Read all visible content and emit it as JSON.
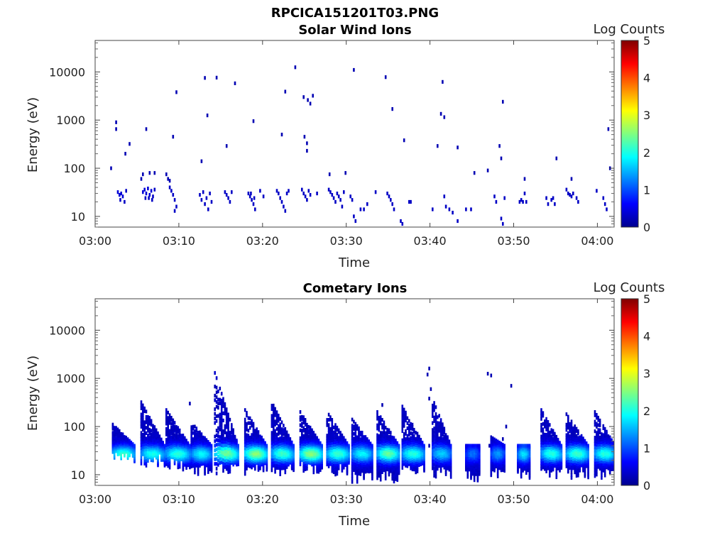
{
  "figure_title": "RPCICA151201T03.PNG",
  "chart_data": [
    {
      "type": "heatmap",
      "title": "Solar Wind Ions",
      "xlabel": "Time",
      "ylabel": "Energy (eV)",
      "yscale": "log",
      "ylim": [
        6,
        45000
      ],
      "xlim": [
        "03:00",
        "04:02"
      ],
      "x_ticks": [
        "03:00",
        "03:10",
        "03:20",
        "03:30",
        "03:40",
        "03:50",
        "04:00"
      ],
      "y_ticks": [
        "10",
        "100",
        "1000",
        "10000"
      ],
      "colorbar": {
        "label": "Log Counts",
        "min": 0,
        "max": 5,
        "ticks": [
          "0",
          "1",
          "2",
          "3",
          "4",
          "5"
        ],
        "colormap": "jet"
      },
      "cells": [
        [
          1.8,
          100,
          0.2
        ],
        [
          2.4,
          900,
          0.2
        ],
        [
          2.4,
          650,
          0.2
        ],
        [
          3.5,
          200,
          0.2
        ],
        [
          4.0,
          320,
          0.2
        ],
        [
          6.0,
          650,
          0.2
        ],
        [
          9.2,
          450,
          0.2
        ],
        [
          9.6,
          3800,
          0.2
        ],
        [
          12.6,
          140,
          0.2
        ],
        [
          13.0,
          7500,
          0.2
        ],
        [
          13.3,
          1250,
          0.2
        ],
        [
          14.4,
          7600,
          0.2
        ],
        [
          15.6,
          290,
          0.2
        ],
        [
          16.6,
          5800,
          0.2
        ],
        [
          18.8,
          950,
          0.2
        ],
        [
          22.2,
          500,
          0.2
        ],
        [
          22.6,
          3900,
          0.2
        ],
        [
          23.8,
          12500,
          0.2
        ],
        [
          24.8,
          3000,
          0.2
        ],
        [
          25.3,
          2600,
          0.2
        ],
        [
          25.6,
          2200,
          0.2
        ],
        [
          25.9,
          3200,
          0.2
        ],
        [
          24.9,
          450,
          0.2
        ],
        [
          25.2,
          330,
          0.2
        ],
        [
          25.2,
          230,
          0.2
        ],
        [
          27.9,
          75,
          0.2
        ],
        [
          29.8,
          80,
          0.2
        ],
        [
          30.8,
          11000,
          0.2
        ],
        [
          34.6,
          7800,
          0.2
        ],
        [
          35.4,
          1700,
          0.2
        ],
        [
          36.8,
          380,
          0.2
        ],
        [
          40.8,
          290,
          0.2
        ],
        [
          41.2,
          1350,
          0.2
        ],
        [
          41.4,
          6200,
          0.2
        ],
        [
          41.6,
          1150,
          0.2
        ],
        [
          43.2,
          270,
          0.2
        ],
        [
          45.2,
          80,
          0.2
        ],
        [
          46.8,
          90,
          0.2
        ],
        [
          48.2,
          290,
          0.2
        ],
        [
          48.4,
          160,
          0.2
        ],
        [
          48.6,
          2400,
          0.2
        ],
        [
          51.2,
          60,
          0.2
        ],
        [
          55.0,
          160,
          0.2
        ],
        [
          56.8,
          60,
          0.2
        ],
        [
          61.2,
          650,
          0.2
        ],
        [
          61.4,
          100,
          0.2
        ],
        [
          3.5,
          6,
          0.2
        ],
        [
          53.2,
          6,
          0.2
        ],
        [
          58.8,
          6,
          0.2
        ],
        [
          5.4,
          60,
          0.2
        ],
        [
          5.6,
          75,
          0.2
        ],
        [
          6.4,
          80,
          0.2
        ],
        [
          7.0,
          80,
          0.2
        ],
        [
          8.4,
          75,
          0.2
        ],
        [
          8.6,
          60,
          0.2
        ],
        [
          8.8,
          55,
          0.2
        ],
        [
          2.6,
          32,
          0.4
        ],
        [
          2.8,
          28,
          0.4
        ],
        [
          3.0,
          30,
          0.4
        ],
        [
          3.2,
          26,
          0.4
        ],
        [
          2.9,
          22,
          0.3
        ],
        [
          3.4,
          20,
          0.3
        ],
        [
          3.6,
          34,
          0.3
        ],
        [
          5.6,
          32,
          0.4
        ],
        [
          5.8,
          36,
          0.4
        ],
        [
          6.0,
          30,
          0.4
        ],
        [
          6.2,
          38,
          0.4
        ],
        [
          6.4,
          28,
          0.4
        ],
        [
          6.6,
          34,
          0.4
        ],
        [
          6.8,
          26,
          0.3
        ],
        [
          7.0,
          36,
          0.3
        ],
        [
          5.9,
          24,
          0.3
        ],
        [
          6.3,
          24,
          0.3
        ],
        [
          6.7,
          22,
          0.3
        ],
        [
          8.8,
          40,
          0.3
        ],
        [
          9.0,
          34,
          0.3
        ],
        [
          9.2,
          28,
          0.3
        ],
        [
          9.4,
          22,
          0.3
        ],
        [
          9.6,
          16,
          0.3
        ],
        [
          9.4,
          13,
          0.3
        ],
        [
          12.4,
          28,
          0.3
        ],
        [
          12.6,
          22,
          0.3
        ],
        [
          12.8,
          32,
          0.3
        ],
        [
          13.0,
          18,
          0.3
        ],
        [
          13.2,
          24,
          0.3
        ],
        [
          13.4,
          14,
          0.3
        ],
        [
          13.6,
          30,
          0.3
        ],
        [
          13.8,
          20,
          0.3
        ],
        [
          15.4,
          32,
          0.3
        ],
        [
          15.6,
          28,
          0.3
        ],
        [
          15.8,
          24,
          0.3
        ],
        [
          16.0,
          20,
          0.3
        ],
        [
          16.2,
          32,
          0.3
        ],
        [
          18.2,
          30,
          0.3
        ],
        [
          18.4,
          26,
          0.3
        ],
        [
          18.6,
          22,
          0.3
        ],
        [
          18.8,
          18,
          0.3
        ],
        [
          19.0,
          14,
          0.3
        ],
        [
          18.5,
          30,
          0.3
        ],
        [
          18.9,
          24,
          0.3
        ],
        [
          19.6,
          34,
          0.3
        ],
        [
          20.0,
          26,
          0.3
        ],
        [
          21.6,
          34,
          0.3
        ],
        [
          21.8,
          30,
          0.3
        ],
        [
          22.0,
          24,
          0.3
        ],
        [
          22.2,
          20,
          0.3
        ],
        [
          22.4,
          16,
          0.3
        ],
        [
          22.6,
          13,
          0.3
        ],
        [
          22.8,
          30,
          0.3
        ],
        [
          23.0,
          34,
          0.3
        ],
        [
          24.6,
          36,
          0.3
        ],
        [
          24.8,
          30,
          0.3
        ],
        [
          25.0,
          26,
          0.3
        ],
        [
          25.2,
          22,
          0.3
        ],
        [
          25.4,
          34,
          0.3
        ],
        [
          25.6,
          28,
          0.3
        ],
        [
          26.4,
          30,
          0.3
        ],
        [
          27.8,
          36,
          0.3
        ],
        [
          28.0,
          32,
          0.3
        ],
        [
          28.2,
          28,
          0.3
        ],
        [
          28.4,
          24,
          0.3
        ],
        [
          28.6,
          20,
          0.3
        ],
        [
          28.8,
          30,
          0.3
        ],
        [
          29.0,
          26,
          0.3
        ],
        [
          29.2,
          22,
          0.3
        ],
        [
          29.4,
          16,
          0.3
        ],
        [
          29.6,
          32,
          0.3
        ],
        [
          30.4,
          26,
          0.3
        ],
        [
          30.6,
          22,
          0.3
        ],
        [
          30.8,
          10,
          0.3
        ],
        [
          31.0,
          8,
          0.3
        ],
        [
          31.6,
          14,
          0.3
        ],
        [
          32.0,
          14,
          0.3
        ],
        [
          32.4,
          18,
          0.3
        ],
        [
          33.4,
          32,
          0.3
        ],
        [
          34.8,
          30,
          0.3
        ],
        [
          35.0,
          26,
          0.3
        ],
        [
          35.2,
          22,
          0.3
        ],
        [
          35.4,
          18,
          0.3
        ],
        [
          35.6,
          14,
          0.3
        ],
        [
          36.4,
          8,
          0.3
        ],
        [
          36.6,
          7,
          0.3
        ],
        [
          37.4,
          20,
          0.3
        ],
        [
          37.6,
          20,
          0.3
        ],
        [
          40.2,
          14,
          0.3
        ],
        [
          41.6,
          26,
          0.3
        ],
        [
          41.8,
          16,
          0.3
        ],
        [
          42.2,
          14,
          0.3
        ],
        [
          42.6,
          12,
          0.3
        ],
        [
          43.2,
          8,
          0.3
        ],
        [
          44.2,
          14,
          0.3
        ],
        [
          44.8,
          14,
          0.3
        ],
        [
          47.6,
          26,
          0.3
        ],
        [
          47.8,
          20,
          0.3
        ],
        [
          48.4,
          9,
          0.3
        ],
        [
          48.6,
          7,
          0.3
        ],
        [
          48.8,
          24,
          0.3
        ],
        [
          50.6,
          20,
          0.3
        ],
        [
          50.8,
          22,
          0.3
        ],
        [
          51.0,
          20,
          0.3
        ],
        [
          51.2,
          30,
          0.3
        ],
        [
          51.4,
          20,
          0.3
        ],
        [
          53.8,
          24,
          0.3
        ],
        [
          54.0,
          18,
          0.3
        ],
        [
          54.4,
          22,
          0.3
        ],
        [
          54.6,
          24,
          0.3
        ],
        [
          54.8,
          18,
          0.3
        ],
        [
          56.2,
          36,
          0.3
        ],
        [
          56.4,
          30,
          0.3
        ],
        [
          56.6,
          28,
          0.3
        ],
        [
          56.8,
          26,
          0.3
        ],
        [
          57.0,
          30,
          0.3
        ],
        [
          57.4,
          24,
          0.3
        ],
        [
          57.6,
          20,
          0.3
        ],
        [
          59.8,
          34,
          0.3
        ],
        [
          60.6,
          24,
          0.3
        ],
        [
          60.8,
          18,
          0.3
        ],
        [
          61.0,
          14,
          0.3
        ]
      ]
    },
    {
      "type": "heatmap",
      "title": "Cometary Ions",
      "xlabel": "Time",
      "ylabel": "Energy (eV)",
      "yscale": "log",
      "ylim": [
        6,
        45000
      ],
      "xlim": [
        "03:00",
        "04:02"
      ],
      "x_ticks": [
        "03:00",
        "03:10",
        "03:20",
        "03:30",
        "03:40",
        "03:50",
        "04:00"
      ],
      "y_ticks": [
        "10",
        "100",
        "1000",
        "10000"
      ],
      "colorbar": {
        "label": "Log Counts",
        "min": 0,
        "max": 5,
        "ticks": [
          "0",
          "1",
          "2",
          "3",
          "4",
          "5"
        ],
        "colormap": "jet"
      },
      "bursts": [
        {
          "t0": 2.0,
          "top": 110,
          "base": 24,
          "peak": 1.9,
          "w": 2.6
        },
        {
          "t0": 5.4,
          "top": 320,
          "base": 22,
          "peak": 1.7,
          "w": 2.8
        },
        {
          "t0": 8.4,
          "top": 220,
          "base": 18,
          "peak": 1.8,
          "w": 2.8
        },
        {
          "t0": 11.4,
          "top": 120,
          "base": 14,
          "peak": 1.6,
          "w": 2.4
        },
        {
          "t0": 14.2,
          "top": 1300,
          "base": 14,
          "peak": 2.2,
          "w": 2.8
        },
        {
          "t0": 17.8,
          "top": 220,
          "base": 14,
          "peak": 2.3,
          "w": 2.6
        },
        {
          "t0": 21.0,
          "top": 320,
          "base": 14,
          "peak": 1.9,
          "w": 2.6
        },
        {
          "t0": 24.4,
          "top": 200,
          "base": 16,
          "peak": 2.3,
          "w": 2.6
        },
        {
          "t0": 27.6,
          "top": 200,
          "base": 14,
          "peak": 1.9,
          "w": 2.6
        },
        {
          "t0": 30.6,
          "top": 140,
          "base": 10,
          "peak": 1.6,
          "w": 2.4
        },
        {
          "t0": 33.6,
          "top": 200,
          "base": 10,
          "peak": 2.1,
          "w": 2.6
        },
        {
          "t0": 36.6,
          "top": 260,
          "base": 14,
          "peak": 1.8,
          "w": 2.6
        },
        {
          "t0": 40.2,
          "top": 380,
          "base": 12,
          "peak": 1.4,
          "w": 2.2
        },
        {
          "t0": 44.2,
          "top": 40,
          "base": 10,
          "peak": 0.9,
          "w": 1.6
        },
        {
          "t0": 47.2,
          "top": 60,
          "base": 12,
          "peak": 1.1,
          "w": 1.6
        },
        {
          "t0": 50.4,
          "top": 40,
          "base": 12,
          "peak": 1.5,
          "w": 1.4
        },
        {
          "t0": 53.2,
          "top": 220,
          "base": 12,
          "peak": 1.8,
          "w": 2.4
        },
        {
          "t0": 56.2,
          "top": 180,
          "base": 12,
          "peak": 1.9,
          "w": 2.6
        },
        {
          "t0": 59.6,
          "top": 200,
          "base": 12,
          "peak": 1.8,
          "w": 2.4
        }
      ],
      "cells": [
        [
          46.8,
          1250,
          0.2
        ],
        [
          47.2,
          1150,
          0.2
        ],
        [
          49.6,
          700,
          0.2
        ],
        [
          49.0,
          100,
          0.2
        ],
        [
          48.6,
          55,
          0.2
        ],
        [
          42.0,
          40,
          0.2
        ],
        [
          39.8,
          40,
          0.2
        ],
        [
          39.8,
          1600,
          0.2
        ],
        [
          39.6,
          1200,
          0.2
        ],
        [
          40.0,
          600,
          0.2
        ],
        [
          39.8,
          380,
          0.2
        ],
        [
          11.2,
          300,
          0.2
        ],
        [
          34.2,
          280,
          0.2
        ],
        [
          47.0,
          40,
          0.2
        ]
      ]
    }
  ]
}
